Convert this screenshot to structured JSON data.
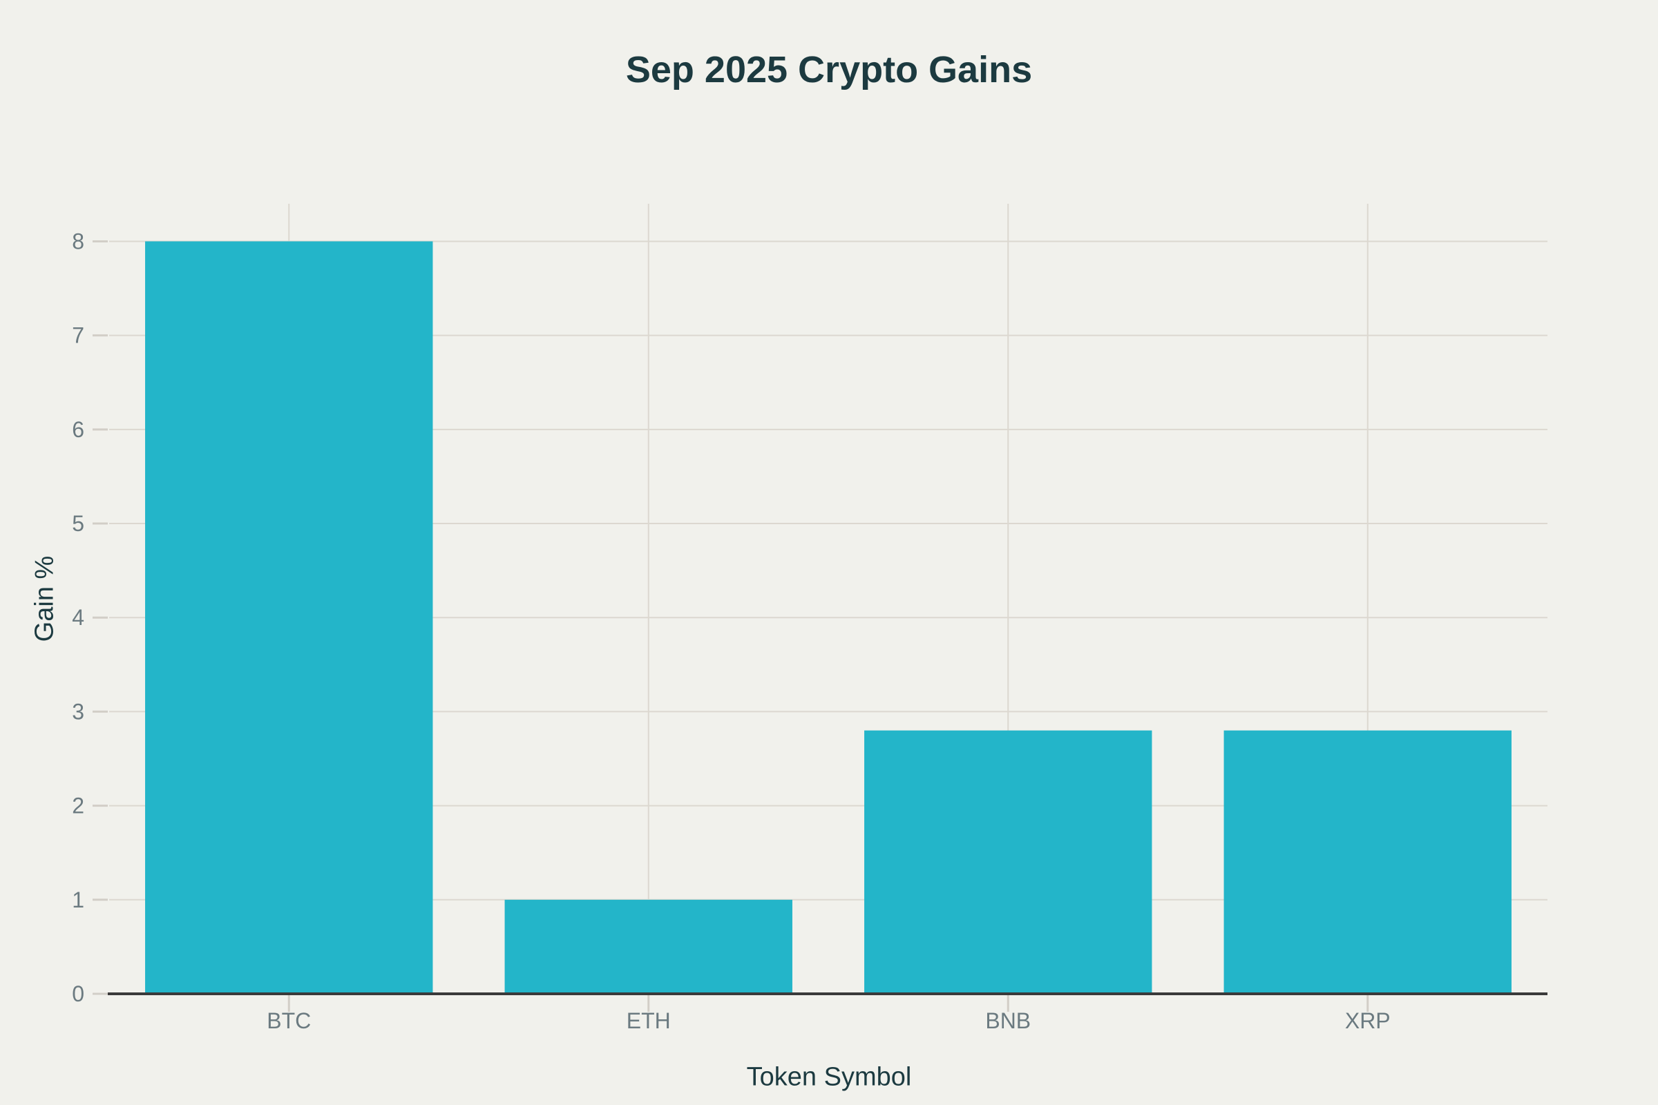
{
  "chart_data": {
    "type": "bar",
    "title": "Sep 2025 Crypto Gains",
    "xlabel": "Token Symbol",
    "ylabel": "Gain %",
    "categories": [
      "BTC",
      "ETH",
      "BNB",
      "XRP"
    ],
    "values": [
      8,
      1,
      2.8,
      2.8
    ],
    "yticks": [
      0,
      1,
      2,
      3,
      4,
      5,
      6,
      7,
      8
    ],
    "ylim": [
      0,
      8.4
    ],
    "grid": true,
    "legend": "none",
    "colors": {
      "bar": "#23b5c9",
      "background": "#f1f1ec",
      "grid": "#dcd8d0",
      "tick": "#d2cec7",
      "axis_line": "#3a3a3a",
      "tick_label": "#6b7a80",
      "text_dark": "#1c3a40"
    }
  }
}
